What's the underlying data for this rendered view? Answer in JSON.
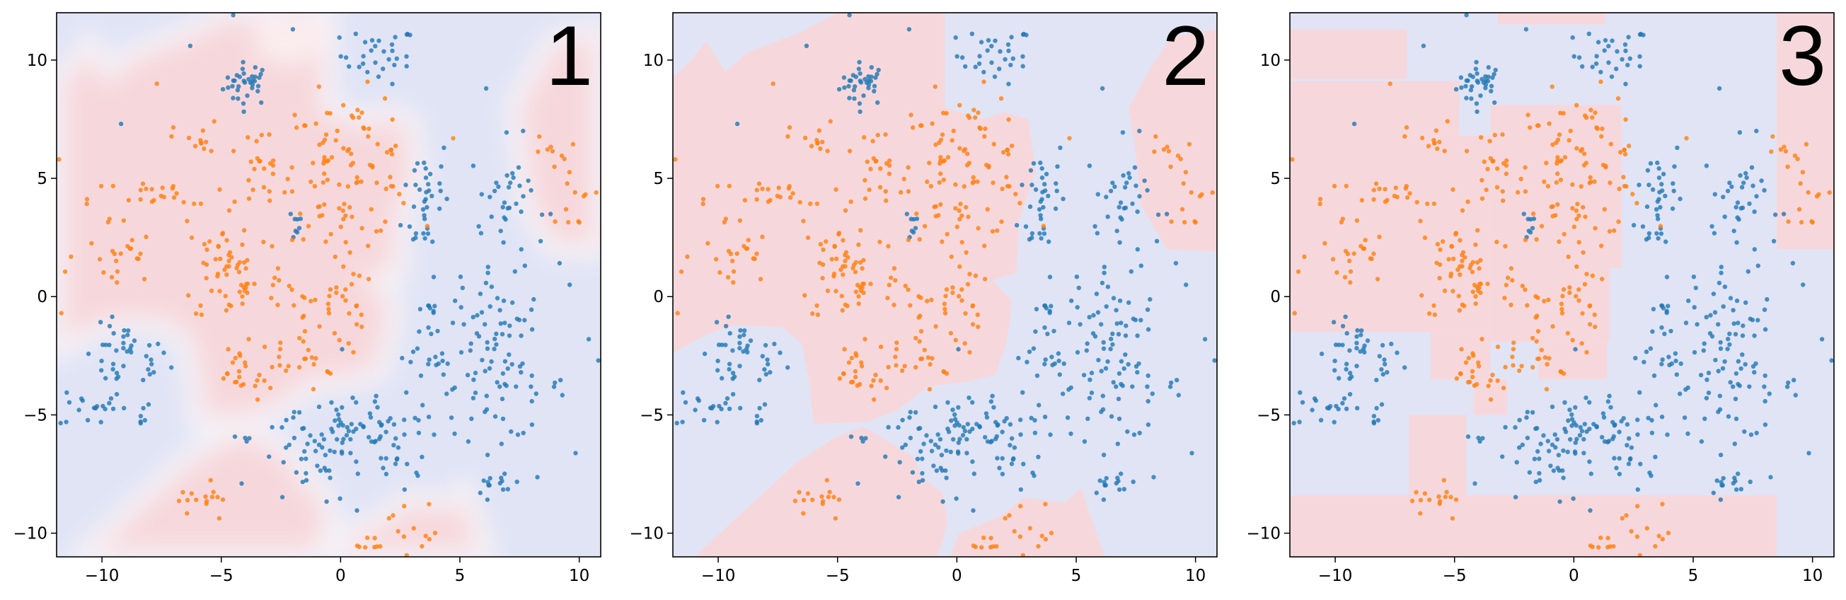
{
  "figure": {
    "axis_color": "#000000",
    "class_colors": {
      "class_a": "#1f77b4",
      "class_b": "#ff7f0e"
    },
    "region_colors": {
      "class_a": "#e0e4f5",
      "class_b": "#f6d8dc"
    }
  },
  "chart_data": [
    {
      "type": "scatter",
      "panel_label": "1",
      "background": "smooth decision boundary",
      "xlim": [
        -11.9,
        10.9
      ],
      "ylim": [
        -11.0,
        12.0
      ],
      "xticks": [
        -10,
        -5,
        0,
        5,
        10
      ],
      "yticks": [
        -10,
        -5,
        0,
        5,
        10
      ],
      "x_tick_labels": [
        "−10",
        "−5",
        "0",
        "5",
        "10"
      ],
      "y_tick_labels": [
        "−10",
        "−5",
        "0",
        "5",
        "10"
      ],
      "grid": false
    },
    {
      "type": "scatter",
      "panel_label": "2",
      "background": "polygonal decision regions",
      "xlim": [
        -11.9,
        10.9
      ],
      "ylim": [
        -11.0,
        12.0
      ],
      "xticks": [
        -10,
        -5,
        0,
        5,
        10
      ],
      "yticks": [
        -10,
        -5,
        0,
        5,
        10
      ],
      "x_tick_labels": [
        "−10",
        "−5",
        "0",
        "5",
        "10"
      ],
      "y_tick_labels": [
        "−10",
        "−5",
        "0",
        "5",
        "10"
      ],
      "grid": false
    },
    {
      "type": "scatter",
      "panel_label": "3",
      "background": "axis-aligned rectangular decision regions",
      "xlim": [
        -11.9,
        10.9
      ],
      "ylim": [
        -11.0,
        12.0
      ],
      "xticks": [
        -10,
        -5,
        0,
        5,
        10
      ],
      "yticks": [
        -10,
        -5,
        0,
        5,
        10
      ],
      "x_tick_labels": [
        "−10",
        "−5",
        "0",
        "5",
        "10"
      ],
      "y_tick_labels": [
        "−10",
        "−5",
        "0",
        "5",
        "10"
      ],
      "grid": false
    }
  ],
  "clusters": {
    "class_a": [
      {
        "cx": -3.9,
        "cy": 9.0,
        "sx": 0.5,
        "sy": 0.45,
        "n": 35
      },
      {
        "cx": 1.6,
        "cy": 10.2,
        "sx": 0.8,
        "sy": 0.6,
        "n": 30
      },
      {
        "cx": -9.0,
        "cy": -2.6,
        "sx": 0.9,
        "sy": 0.7,
        "n": 40
      },
      {
        "cx": -10.4,
        "cy": -4.6,
        "sx": 0.7,
        "sy": 0.5,
        "n": 20
      },
      {
        "cx": -8.5,
        "cy": -5.0,
        "sx": 0.3,
        "sy": 0.3,
        "n": 6
      },
      {
        "cx": -2.0,
        "cy": 3.1,
        "sx": 0.25,
        "sy": 0.35,
        "n": 8
      },
      {
        "cx": 3.6,
        "cy": 4.2,
        "sx": 0.5,
        "sy": 1.4,
        "n": 35
      },
      {
        "cx": 7.0,
        "cy": 4.0,
        "sx": 0.8,
        "sy": 1.3,
        "n": 40
      },
      {
        "cx": 3.8,
        "cy": -1.6,
        "sx": 0.6,
        "sy": 1.4,
        "n": 30
      },
      {
        "cx": 6.5,
        "cy": -0.8,
        "sx": 0.9,
        "sy": 0.8,
        "n": 30
      },
      {
        "cx": 6.7,
        "cy": -3.8,
        "sx": 1.4,
        "sy": 1.1,
        "n": 60
      },
      {
        "cx": 0.5,
        "cy": -5.5,
        "sx": 1.0,
        "sy": 1.0,
        "n": 45
      },
      {
        "cx": -1.5,
        "cy": -7.0,
        "sx": 1.0,
        "sy": 1.0,
        "n": 40
      },
      {
        "cx": 2.5,
        "cy": -6.5,
        "sx": 0.8,
        "sy": 1.0,
        "n": 30
      },
      {
        "cx": 6.8,
        "cy": -7.9,
        "sx": 0.6,
        "sy": 0.4,
        "n": 15
      },
      {
        "cx": -4.0,
        "cy": -6.0,
        "sx": 0.15,
        "sy": 0.08,
        "n": 4
      }
    ],
    "class_b": [
      {
        "cx": 0.3,
        "cy": 5.5,
        "sx": 1.4,
        "sy": 1.5,
        "n": 95
      },
      {
        "cx": -3.5,
        "cy": 5.2,
        "sx": 1.0,
        "sy": 1.0,
        "n": 25
      },
      {
        "cx": -7.5,
        "cy": 4.1,
        "sx": 1.5,
        "sy": 0.5,
        "n": 25
      },
      {
        "cx": -4.5,
        "cy": 1.2,
        "sx": 1.1,
        "sy": 1.2,
        "n": 60
      },
      {
        "cx": -9.6,
        "cy": 1.6,
        "sx": 0.9,
        "sy": 0.9,
        "n": 25
      },
      {
        "cx": -1.5,
        "cy": -1.4,
        "sx": 1.0,
        "sy": 1.3,
        "n": 45
      },
      {
        "cx": -4.3,
        "cy": -3.2,
        "sx": 0.7,
        "sy": 0.6,
        "n": 20
      },
      {
        "cx": 0.0,
        "cy": 0.2,
        "sx": 0.5,
        "sy": 1.4,
        "n": 20
      },
      {
        "cx": 9.0,
        "cy": 6.0,
        "sx": 0.4,
        "sy": 0.4,
        "n": 10
      },
      {
        "cx": 9.6,
        "cy": 3.9,
        "sx": 0.5,
        "sy": 0.5,
        "n": 10
      },
      {
        "cx": -5.8,
        "cy": -8.6,
        "sx": 0.5,
        "sy": 0.6,
        "n": 15
      },
      {
        "cx": 3.0,
        "cy": -9.6,
        "sx": 0.5,
        "sy": 0.6,
        "n": 12
      },
      {
        "cx": 1.0,
        "cy": -10.5,
        "sx": 0.5,
        "sy": 0.3,
        "n": 8
      },
      {
        "cx": -6.0,
        "cy": 6.6,
        "sx": 0.5,
        "sy": 0.4,
        "n": 12
      }
    ],
    "outliers_a": [
      [
        -4.5,
        11.9
      ],
      [
        -6.3,
        10.6
      ],
      [
        -9.2,
        7.3
      ],
      [
        6.1,
        8.8
      ],
      [
        9.6,
        0.5
      ],
      [
        10.4,
        -1.8
      ],
      [
        10.8,
        -2.7
      ],
      [
        -2.0,
        11.3
      ]
    ],
    "outliers_b": [
      [
        -7.7,
        9.0
      ],
      [
        -11.8,
        5.8
      ],
      [
        -11.7,
        -0.7
      ]
    ]
  },
  "regions": {
    "panel2_class_b": [
      [
        [
          -11.9,
          9.3
        ],
        [
          -11.3,
          9.8
        ],
        [
          -10.5,
          10.8
        ],
        [
          -9.7,
          9.5
        ],
        [
          -8.8,
          10.3
        ],
        [
          -6.5,
          11.2
        ],
        [
          -5.0,
          12.0
        ],
        [
          -2.8,
          12.0
        ],
        [
          -2.2,
          10.6
        ],
        [
          -1.5,
          11.0
        ],
        [
          -0.5,
          12.0
        ],
        [
          -0.5,
          8.0
        ],
        [
          1.0,
          7.5
        ],
        [
          2.0,
          7.8
        ],
        [
          3.0,
          7.5
        ],
        [
          3.3,
          5.3
        ],
        [
          2.6,
          3.2
        ],
        [
          2.5,
          1.0
        ],
        [
          1.5,
          0.7
        ],
        [
          2.3,
          -0.2
        ],
        [
          2.2,
          -1.2
        ],
        [
          2.0,
          -2.2
        ],
        [
          1.6,
          -3.3
        ],
        [
          0.4,
          -3.6
        ],
        [
          -1.2,
          -3.8
        ],
        [
          -2.5,
          -4.8
        ],
        [
          -3.8,
          -5.3
        ],
        [
          -6.0,
          -5.4
        ],
        [
          -6.2,
          -3.5
        ],
        [
          -6.5,
          -2.0
        ],
        [
          -7.3,
          -1.3
        ],
        [
          -9.3,
          -1.2
        ],
        [
          -10.5,
          -1.6
        ],
        [
          -11.9,
          -2.4
        ]
      ],
      [
        [
          7.2,
          8.0
        ],
        [
          8.2,
          9.8
        ],
        [
          9.0,
          11.0
        ],
        [
          10.9,
          11.3
        ],
        [
          10.9,
          1.9
        ],
        [
          8.8,
          2.0
        ],
        [
          7.7,
          3.9
        ],
        [
          7.5,
          6.0
        ]
      ],
      [
        [
          -11.0,
          -11.0
        ],
        [
          -6.7,
          -7.0
        ],
        [
          -5.0,
          -5.9
        ],
        [
          -3.9,
          -5.5
        ],
        [
          -1.8,
          -6.8
        ],
        [
          -1.5,
          -7.6
        ],
        [
          -0.6,
          -8.3
        ],
        [
          -0.4,
          -9.6
        ],
        [
          -0.8,
          -11.0
        ]
      ],
      [
        [
          -0.3,
          -11.0
        ],
        [
          0.1,
          -10.0
        ],
        [
          1.8,
          -9.3
        ],
        [
          2.8,
          -8.5
        ],
        [
          4.5,
          -8.7
        ],
        [
          5.2,
          -8.1
        ],
        [
          6.2,
          -11.0
        ]
      ],
      [
        [
          -3.2,
          12.0
        ],
        [
          -3.1,
          10.4
        ],
        [
          -1.8,
          10.2
        ],
        [
          -1.0,
          10.9
        ],
        [
          -0.6,
          12.0
        ]
      ]
    ],
    "panel3_class_b": [
      [
        -11.9,
        6.8,
        -4.8,
        9.1
      ],
      [
        -6.8,
        -1.5,
        -3.5,
        6.8
      ],
      [
        -11.9,
        -1.5,
        -6.8,
        7.1
      ],
      [
        -3.5,
        -1.9,
        1.5,
        8.1
      ],
      [
        -6.0,
        -3.5,
        -3.5,
        -1.5
      ],
      [
        -4.2,
        -5.0,
        -2.8,
        -3.5
      ],
      [
        -1.5,
        -3.5,
        1.4,
        -1.9
      ],
      [
        1.5,
        1.2,
        2.0,
        8.1
      ],
      [
        -11.9,
        9.2,
        -7.0,
        11.3
      ],
      [
        -6.9,
        -8.4,
        -4.5,
        -5.0
      ],
      [
        -11.9,
        -11.0,
        8.5,
        -8.4
      ],
      [
        -3.2,
        11.5,
        1.3,
        12.0
      ],
      [
        8.5,
        2.0,
        10.9,
        12.0
      ]
    ]
  }
}
